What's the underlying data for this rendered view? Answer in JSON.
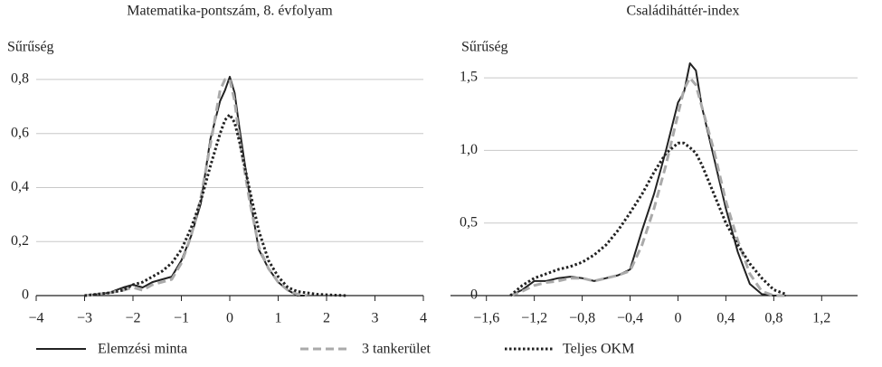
{
  "chart_data": [
    {
      "type": "line",
      "title": "Matematika-pontszám, 8. évfolyam",
      "ylabel": "Sűrűség",
      "x": [
        -3,
        -2.5,
        -2.2,
        -2.0,
        -1.8,
        -1.6,
        -1.4,
        -1.2,
        -1.0,
        -0.8,
        -0.6,
        -0.4,
        -0.2,
        -0.1,
        0,
        0.1,
        0.2,
        0.4,
        0.6,
        0.8,
        1.0,
        1.2,
        1.4,
        1.6,
        1.8,
        2.0,
        2.4
      ],
      "series": [
        {
          "name": "Elemzési minta",
          "color": "#222222",
          "dash": "solid",
          "values": [
            0,
            0.01,
            0.03,
            0.04,
            0.03,
            0.05,
            0.06,
            0.07,
            0.13,
            0.22,
            0.34,
            0.58,
            0.72,
            0.76,
            0.81,
            0.75,
            0.62,
            0.38,
            0.17,
            0.1,
            0.05,
            0.02,
            0,
            0,
            null,
            null,
            null
          ]
        },
        {
          "name": "3 tankerület",
          "color": "#aaaaaa",
          "dash": "dashed",
          "values": [
            0,
            0.01,
            0.02,
            0.03,
            0.02,
            0.04,
            0.05,
            0.06,
            0.12,
            0.22,
            0.36,
            0.56,
            0.76,
            0.8,
            0.8,
            0.72,
            0.58,
            0.36,
            0.18,
            0.1,
            0.05,
            0.02,
            0.005,
            0,
            null,
            null,
            null
          ]
        },
        {
          "name": "Teljes OKM",
          "color": "#222222",
          "dash": "dotted",
          "values": [
            0,
            0.01,
            0.02,
            0.04,
            0.05,
            0.07,
            0.09,
            0.12,
            0.17,
            0.25,
            0.35,
            0.48,
            0.6,
            0.65,
            0.67,
            0.64,
            0.57,
            0.4,
            0.24,
            0.13,
            0.07,
            0.03,
            0.015,
            0.01,
            0.005,
            0.003,
            0
          ]
        }
      ],
      "xlim": [
        -4,
        4
      ],
      "xticks": [
        {
          "value": -4,
          "label": "−4"
        },
        {
          "value": -3,
          "label": "−3"
        },
        {
          "value": -2,
          "label": "−2"
        },
        {
          "value": -1,
          "label": "−1"
        },
        0,
        1,
        2,
        3,
        4
      ],
      "ylim": [
        0,
        0.86
      ],
      "yticks": [
        0,
        {
          "value": 0.2,
          "label": "0,2"
        },
        {
          "value": 0.4,
          "label": "0,4"
        },
        {
          "value": 0.6,
          "label": "0,6"
        },
        {
          "value": 0.8,
          "label": "0,8"
        }
      ],
      "grid": true
    },
    {
      "type": "line",
      "title": "Családiháttér-index",
      "ylabel": "Sűrűség",
      "x": [
        -1.4,
        -1.3,
        -1.2,
        -1.1,
        -1.0,
        -0.9,
        -0.8,
        -0.7,
        -0.6,
        -0.5,
        -0.4,
        -0.3,
        -0.2,
        -0.1,
        0,
        0.05,
        0.1,
        0.15,
        0.2,
        0.3,
        0.4,
        0.5,
        0.6,
        0.7,
        0.8,
        0.9
      ],
      "series": [
        {
          "color": "#222222",
          "dash": "solid",
          "values": [
            0,
            0.04,
            0.1,
            0.1,
            0.12,
            0.13,
            0.12,
            0.1,
            0.12,
            0.14,
            0.18,
            0.45,
            0.7,
            1.0,
            1.33,
            1.4,
            1.6,
            1.55,
            1.3,
            0.95,
            0.6,
            0.3,
            0.08,
            0.01,
            0,
            0
          ]
        },
        {
          "color": "#aaaaaa",
          "dash": "dashed",
          "values": [
            0,
            0.03,
            0.07,
            0.09,
            0.1,
            0.12,
            0.12,
            0.1,
            0.12,
            0.14,
            0.17,
            0.35,
            0.6,
            0.9,
            1.25,
            1.42,
            1.5,
            1.45,
            1.3,
            1.0,
            0.65,
            0.38,
            0.15,
            0.03,
            0,
            0
          ]
        },
        {
          "color": "#222222",
          "dash": "dotted",
          "values": [
            0,
            0.07,
            0.12,
            0.15,
            0.18,
            0.2,
            0.23,
            0.28,
            0.35,
            0.45,
            0.57,
            0.7,
            0.85,
            0.98,
            1.05,
            1.05,
            1.02,
            0.98,
            0.9,
            0.7,
            0.5,
            0.35,
            0.22,
            0.12,
            0.04,
            0.01
          ]
        }
      ],
      "xlim": [
        -1.9,
        1.5
      ],
      "xticks": [
        {
          "value": -1.6,
          "label": "−1,6"
        },
        {
          "value": -1.2,
          "label": "−1,2"
        },
        {
          "value": -0.8,
          "label": "−0,8"
        },
        {
          "value": -0.4,
          "label": "−0,4"
        },
        0,
        {
          "value": 0.4,
          "label": "0,4"
        },
        {
          "value": 0.8,
          "label": "0,8"
        },
        {
          "value": 1.2,
          "label": "1,2"
        }
      ],
      "ylim": [
        0,
        1.6
      ],
      "yticks": [
        0,
        {
          "value": 0.5,
          "label": "0,5"
        },
        {
          "value": 1.0,
          "label": "1,0"
        },
        {
          "value": 1.5,
          "label": "1,5"
        }
      ],
      "grid": true
    }
  ]
}
